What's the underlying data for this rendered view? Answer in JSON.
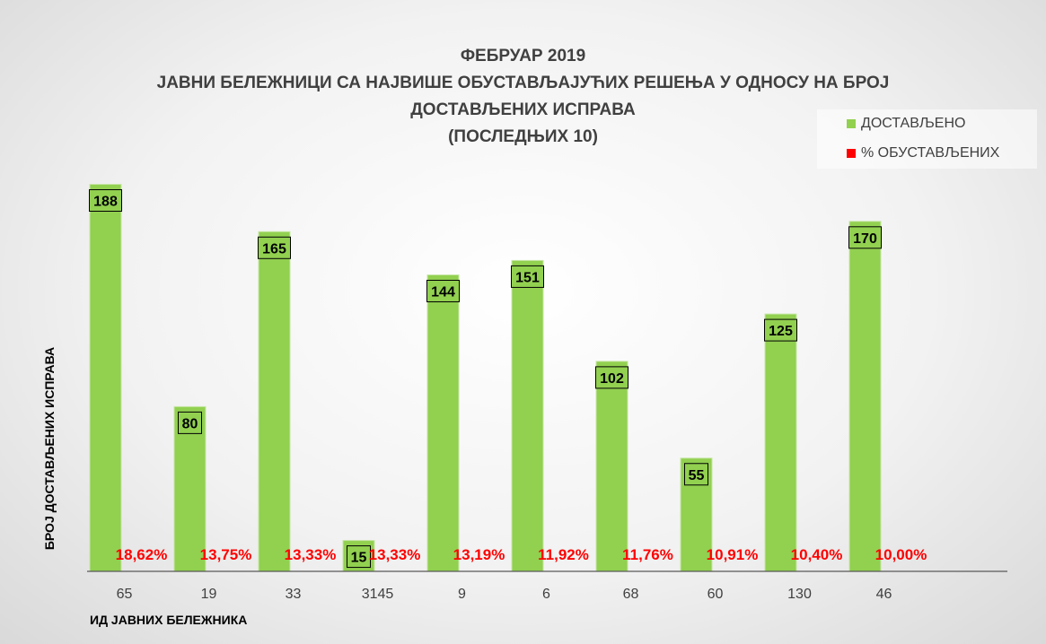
{
  "chart_data": {
    "type": "bar",
    "title_lines": [
      "ФЕБРУАР 2019",
      "ЈАВНИ БЕЛЕЖНИЦИ СА НАЈВИШЕ ОБУСТАВЉАЈУЋИХ РЕШЕЊА У ОДНОСУ  НА БРОЈ",
      "ДОСТАВЉЕНИХ ИСПРАВА",
      "(ПОСЛЕДЊИХ 10)"
    ],
    "xlabel": "ИД ЈАВНИХ БЕЛЕЖНИКА",
    "ylabel": "БРОЈ ДОСТАВЉЕНИХ ИСПРАВА",
    "categories": [
      "65",
      "19",
      "33",
      "3145",
      "9",
      "6",
      "68",
      "60",
      "130",
      "46"
    ],
    "series": [
      {
        "name": "ДОСТАВЉЕНО",
        "values": [
          188,
          80,
          165,
          15,
          144,
          151,
          102,
          55,
          125,
          170
        ],
        "color": "#92d050",
        "labels": [
          "188",
          "80",
          "165",
          "15",
          "144",
          "151",
          "102",
          "55",
          "125",
          "170"
        ]
      },
      {
        "name": "% ОБУСТАВЉЕНИХ",
        "values": [
          18.62,
          13.75,
          13.33,
          13.33,
          13.19,
          11.92,
          11.76,
          10.91,
          10.4,
          10.0
        ],
        "color": "#ff0000",
        "labels": [
          "18,62%",
          "13,75%",
          "13,33%",
          "13,33%",
          "13,19%",
          "11,92%",
          "11,76%",
          "10,91%",
          "10,40%",
          "10,00%"
        ]
      }
    ],
    "ylim": [
      0,
      210
    ],
    "grid": false,
    "legend_position": "top-right"
  }
}
